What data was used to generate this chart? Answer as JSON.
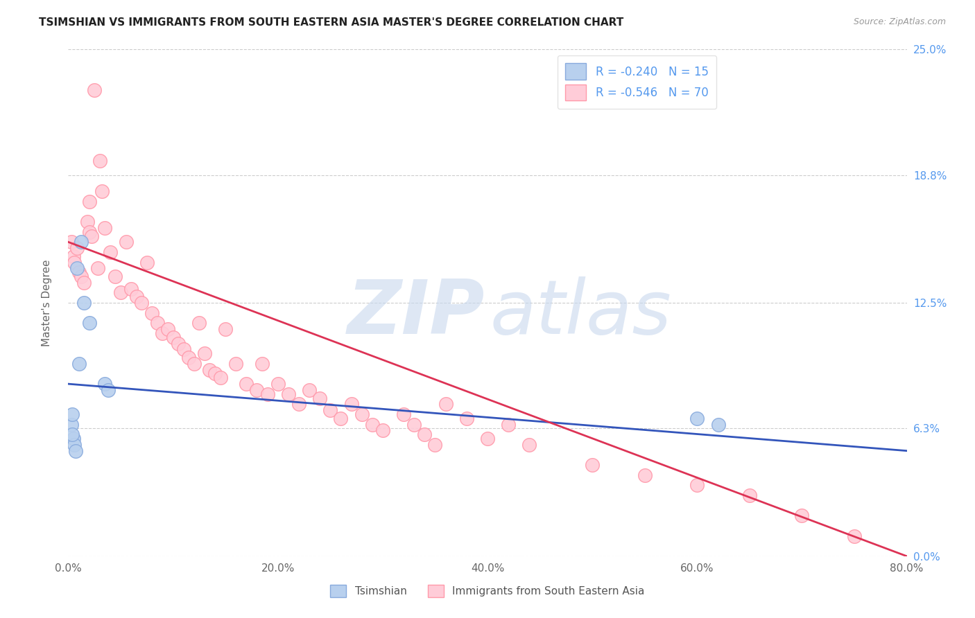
{
  "title": "TSIMSHIAN VS IMMIGRANTS FROM SOUTH EASTERN ASIA MASTER'S DEGREE CORRELATION CHART",
  "source": "Source: ZipAtlas.com",
  "ylabel": "Master's Degree",
  "xlabel_ticks": [
    "0.0%",
    "20.0%",
    "40.0%",
    "60.0%",
    "80.0%"
  ],
  "xlabel_vals": [
    0.0,
    20.0,
    40.0,
    60.0,
    80.0
  ],
  "ylabel_ticks": [
    "0.0%",
    "6.3%",
    "12.5%",
    "18.8%",
    "25.0%"
  ],
  "ylabel_vals": [
    0.0,
    6.3,
    12.5,
    18.8,
    25.0
  ],
  "xlim": [
    0.0,
    80.0
  ],
  "ylim": [
    0.0,
    25.0
  ],
  "blue_label": "Tsimshian",
  "pink_label": "Immigrants from South Eastern Asia",
  "blue_r": -0.24,
  "blue_n": 15,
  "pink_r": -0.546,
  "pink_n": 70,
  "blue_color": "#b8d0ee",
  "blue_edge": "#88aadd",
  "pink_color": "#ffccd8",
  "pink_edge": "#ff99aa",
  "blue_line_color": "#3355bb",
  "pink_line_color": "#dd3355",
  "background_color": "#ffffff",
  "title_color": "#222222",
  "right_label_color": "#5599ee",
  "legend_text_color": "#5599ee",
  "grid_color": "#cccccc",
  "blue_x": [
    0.3,
    0.5,
    0.6,
    0.7,
    0.8,
    1.0,
    1.2,
    1.5,
    2.0,
    3.5,
    3.8,
    0.4,
    0.4,
    60.0,
    62.0
  ],
  "blue_y": [
    6.5,
    5.8,
    5.5,
    5.2,
    14.2,
    9.5,
    15.5,
    12.5,
    11.5,
    8.5,
    8.2,
    7.0,
    6.0,
    6.8,
    6.5
  ],
  "pink_x": [
    0.3,
    0.5,
    0.6,
    0.8,
    1.0,
    1.2,
    1.5,
    1.8,
    2.0,
    2.0,
    2.2,
    2.5,
    2.8,
    3.0,
    3.2,
    3.5,
    4.0,
    4.5,
    5.0,
    5.5,
    6.0,
    6.5,
    7.0,
    7.5,
    8.0,
    8.5,
    9.0,
    9.5,
    10.0,
    10.5,
    11.0,
    11.5,
    12.0,
    12.5,
    13.0,
    13.5,
    14.0,
    14.5,
    15.0,
    16.0,
    17.0,
    18.0,
    18.5,
    19.0,
    20.0,
    21.0,
    22.0,
    23.0,
    24.0,
    25.0,
    26.0,
    27.0,
    28.0,
    29.0,
    30.0,
    32.0,
    33.0,
    34.0,
    35.0,
    36.0,
    38.0,
    40.0,
    42.0,
    44.0,
    50.0,
    55.0,
    60.0,
    65.0,
    70.0,
    75.0
  ],
  "pink_y": [
    15.5,
    14.8,
    14.5,
    15.2,
    14.0,
    13.8,
    13.5,
    16.5,
    16.0,
    17.5,
    15.8,
    23.0,
    14.2,
    19.5,
    18.0,
    16.2,
    15.0,
    13.8,
    13.0,
    15.5,
    13.2,
    12.8,
    12.5,
    14.5,
    12.0,
    11.5,
    11.0,
    11.2,
    10.8,
    10.5,
    10.2,
    9.8,
    9.5,
    11.5,
    10.0,
    9.2,
    9.0,
    8.8,
    11.2,
    9.5,
    8.5,
    8.2,
    9.5,
    8.0,
    8.5,
    8.0,
    7.5,
    8.2,
    7.8,
    7.2,
    6.8,
    7.5,
    7.0,
    6.5,
    6.2,
    7.0,
    6.5,
    6.0,
    5.5,
    7.5,
    6.8,
    5.8,
    6.5,
    5.5,
    4.5,
    4.0,
    3.5,
    3.0,
    2.0,
    1.0
  ],
  "blue_trend_x": [
    0,
    80
  ],
  "blue_trend_y": [
    8.5,
    5.2
  ],
  "pink_trend_x": [
    0,
    80
  ],
  "pink_trend_y": [
    15.5,
    0.0
  ]
}
